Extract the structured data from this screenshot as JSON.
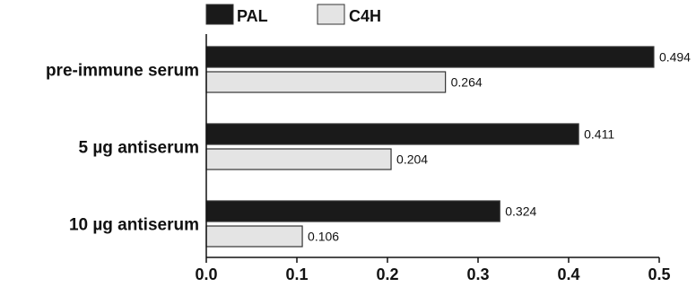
{
  "chart_data": {
    "type": "bar",
    "orientation": "horizontal",
    "categories": [
      "pre-immune serum",
      "5 µg antiserum",
      "10 µg antiserum"
    ],
    "series": [
      {
        "name": "PAL",
        "values": [
          0.494,
          0.411,
          0.324
        ],
        "color": "#1a1a1a"
      },
      {
        "name": "C4H",
        "values": [
          0.264,
          0.204,
          0.106
        ],
        "color": "#e4e4e4"
      }
    ],
    "data_labels": [
      [
        "0.494",
        "0.411",
        "0.324"
      ],
      [
        "0.264",
        "0.204",
        "0.106"
      ]
    ],
    "xlim": [
      0.0,
      0.5
    ],
    "xticks": [
      "0.0",
      "0.1",
      "0.2",
      "0.3",
      "0.4",
      "0.5"
    ],
    "title": "",
    "xlabel": "",
    "ylabel": "",
    "grid": false,
    "legend": "top"
  }
}
